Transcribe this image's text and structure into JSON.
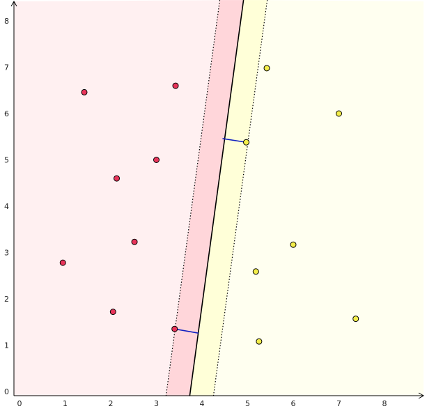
{
  "chart_data": {
    "type": "scatter",
    "title": "",
    "xlabel": "",
    "ylabel": "",
    "xlim": [
      -0.15,
      8.85
    ],
    "ylim": [
      -0.1,
      8.45
    ],
    "x_ticks": [
      0,
      1,
      2,
      3,
      4,
      5,
      6,
      7,
      8
    ],
    "y_ticks": [
      0,
      1,
      2,
      3,
      4,
      5,
      6,
      7,
      8
    ],
    "grid": false,
    "colors": {
      "class_a_point": "#e8345a",
      "class_a_region": "#fff0f1",
      "class_a_margin": "#ffd6da",
      "class_b_point": "#f4ee4a",
      "class_b_region": "#fffff0",
      "class_b_margin": "#ffffd8",
      "support_line": "#1020c0",
      "boundary": "#000000"
    },
    "series": [
      {
        "points": [
          [
            1.42,
            6.46
          ],
          [
            3.42,
            6.6
          ],
          [
            3.0,
            5.0
          ],
          [
            2.13,
            4.6
          ],
          [
            2.52,
            3.23
          ],
          [
            0.95,
            2.78
          ],
          [
            2.05,
            1.72
          ],
          [
            3.4,
            1.35
          ]
        ]
      },
      {
        "points": [
          [
            5.42,
            6.98
          ],
          [
            7.0,
            6.0
          ],
          [
            4.97,
            5.38
          ],
          [
            6.0,
            3.17
          ],
          [
            5.18,
            2.59
          ],
          [
            7.37,
            1.57
          ],
          [
            5.25,
            1.08
          ]
        ]
      }
    ],
    "decision_boundary": {
      "top": [
        4.91,
        8.45
      ],
      "bottom": [
        3.73,
        -0.1
      ]
    },
    "margin_lines": [
      {
        "top": [
          4.39,
          8.45
        ],
        "bottom": [
          3.21,
          -0.1
        ]
      },
      {
        "top": [
          5.43,
          8.45
        ],
        "bottom": [
          4.25,
          -0.1
        ]
      }
    ],
    "support_segments": [
      {
        "from": [
          3.4,
          1.35
        ],
        "to": [
          3.92,
          1.26
        ]
      },
      {
        "from": [
          4.97,
          5.38
        ],
        "to": [
          4.45,
          5.46
        ]
      }
    ]
  }
}
